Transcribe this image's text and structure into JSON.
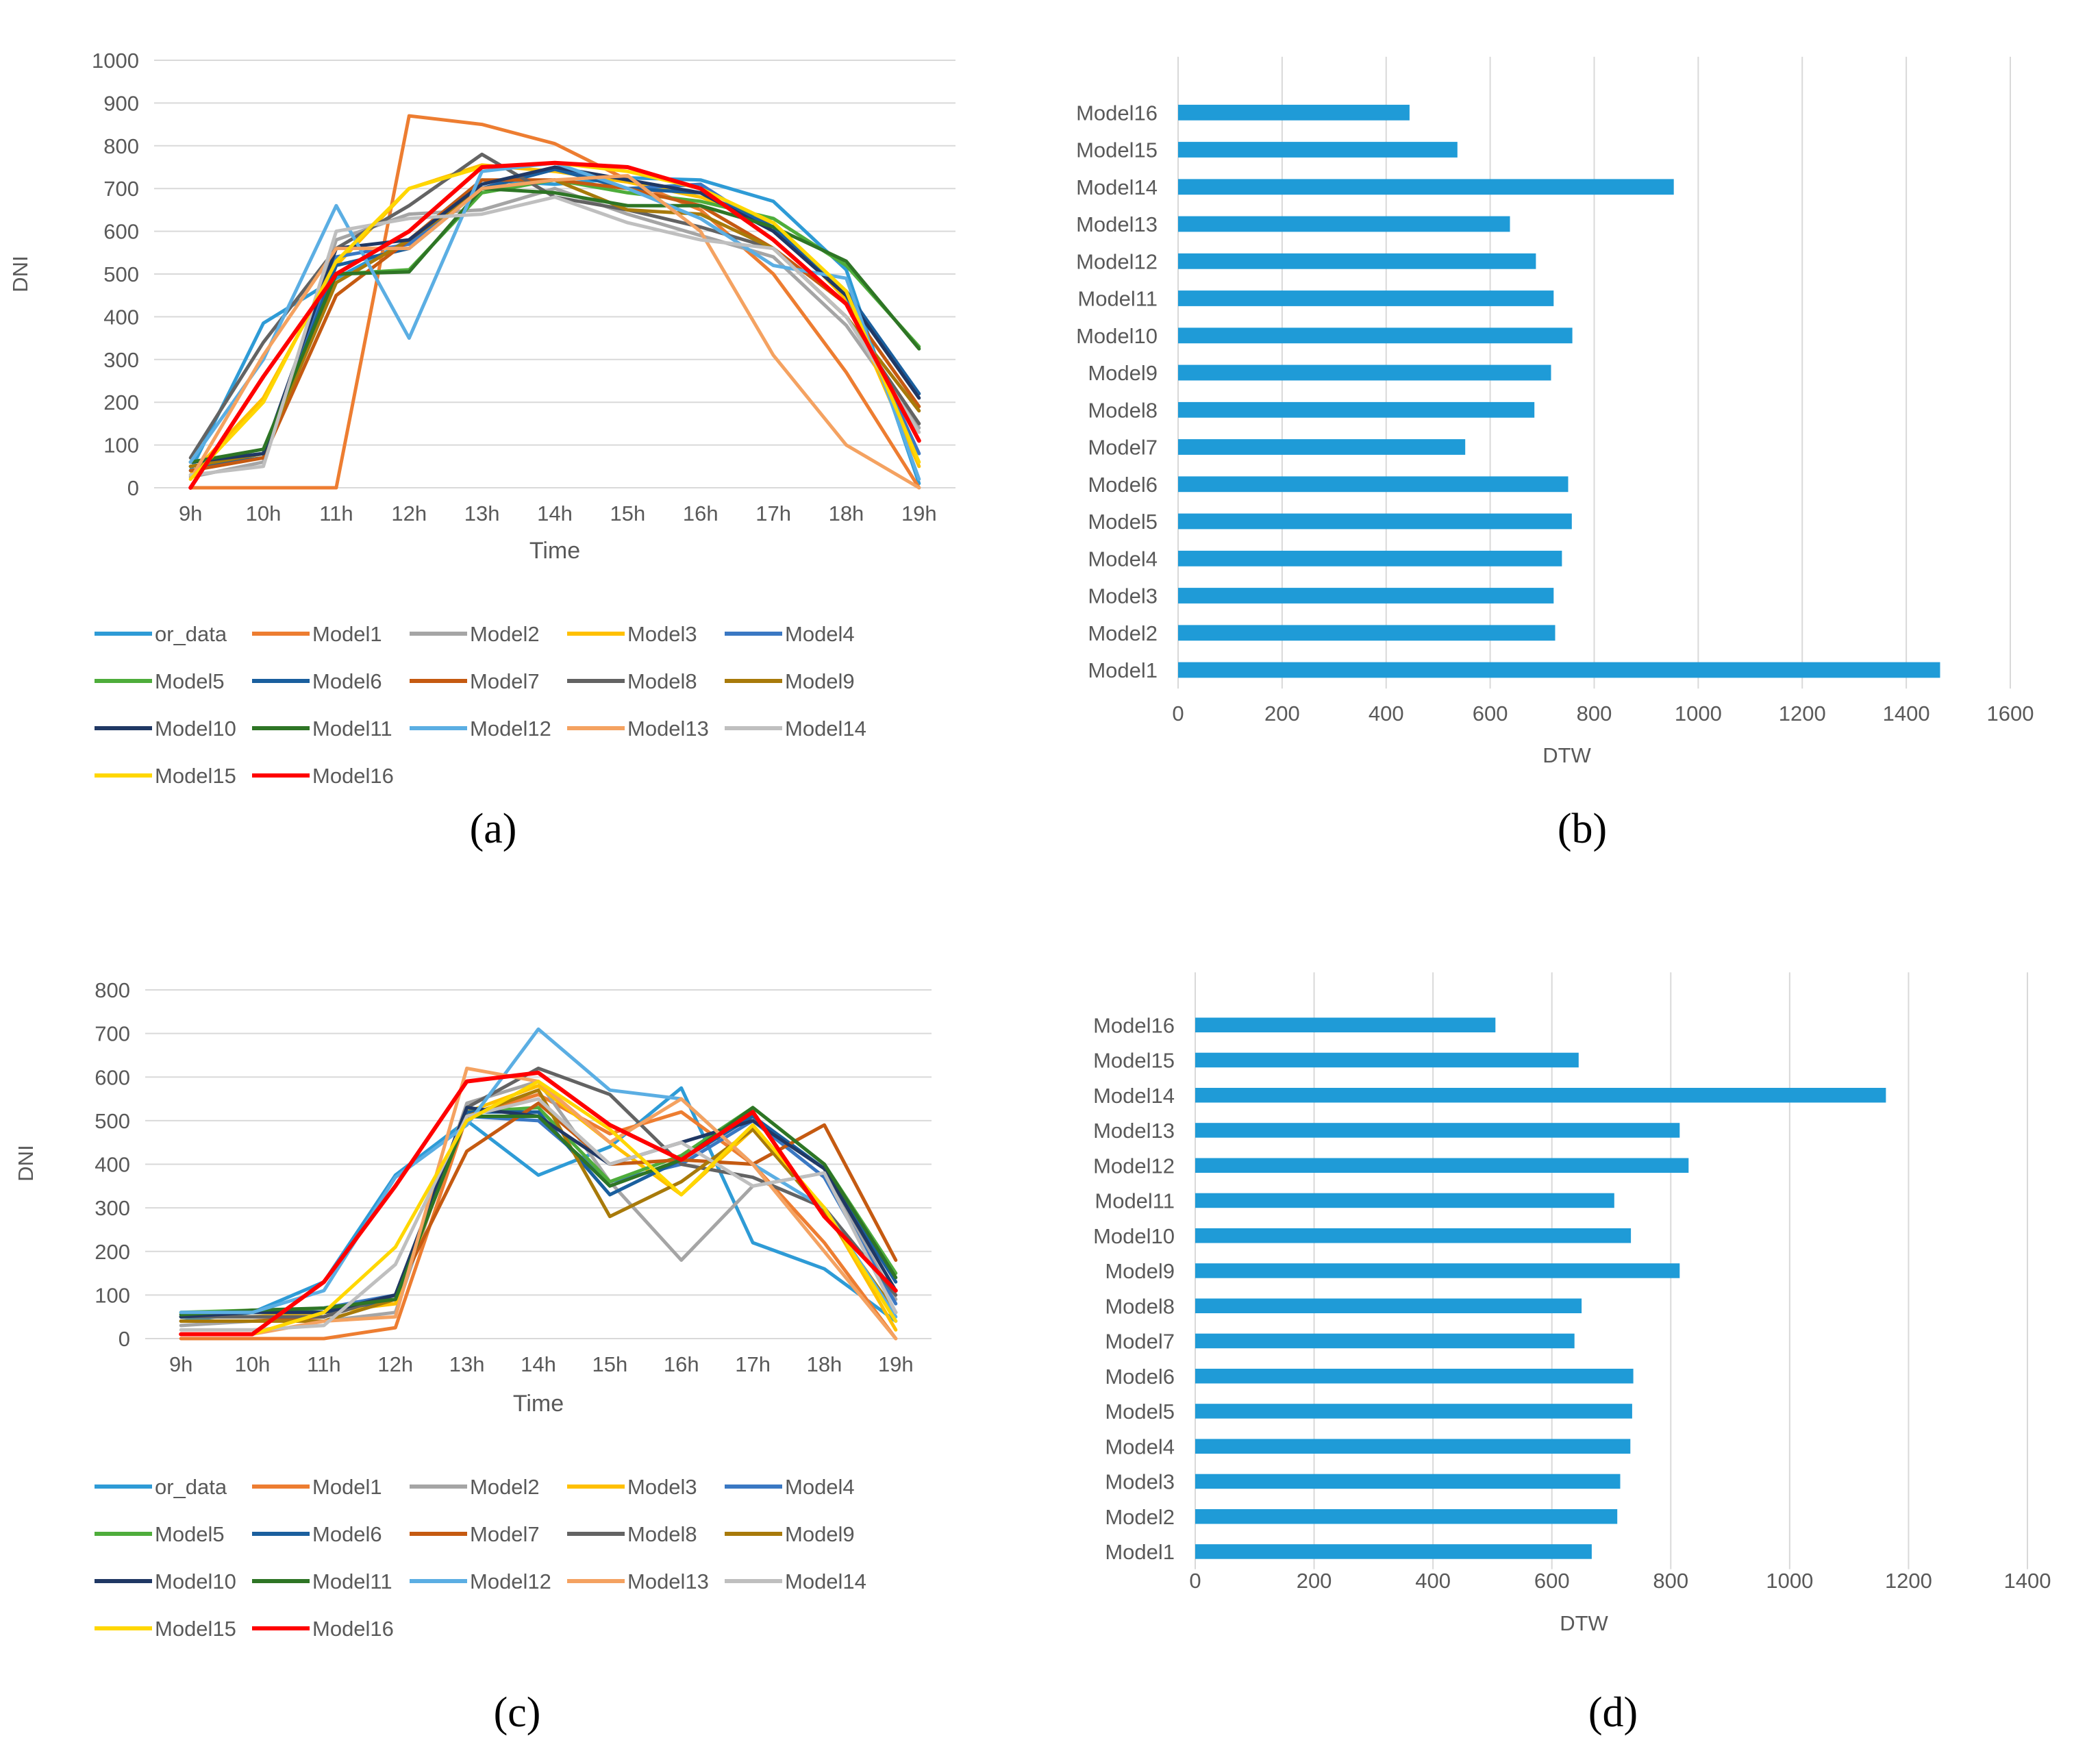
{
  "chart_data": [
    {
      "panel": "a",
      "type": "line",
      "caption": "(a)",
      "xlabel": "Time",
      "ylabel": "DNI",
      "ylim": [
        0,
        1000
      ],
      "yticks": [
        "0",
        "100",
        "200",
        "300",
        "400",
        "500",
        "600",
        "700",
        "800",
        "900",
        "1000"
      ],
      "yticks_values": [
        0,
        100,
        200,
        300,
        400,
        500,
        600,
        700,
        800,
        900,
        1000
      ],
      "categories": [
        "9h",
        "10h",
        "11h",
        "12h",
        "13h",
        "14h",
        "15h",
        "16h",
        "17h",
        "18h",
        "19h"
      ],
      "grid": true,
      "legend_position": "bottom",
      "series": [
        {
          "name": "or_data",
          "color": "#2E9BD6",
          "values": [
            40,
            385,
            490,
            580,
            720,
            710,
            725,
            720,
            670,
            510,
            10
          ]
        },
        {
          "name": "Model1",
          "color": "#ED7D31",
          "values": [
            0,
            0,
            0,
            870,
            850,
            805,
            720,
            650,
            500,
            270,
            0
          ]
        },
        {
          "name": "Model2",
          "color": "#A5A5A5",
          "values": [
            25,
            60,
            580,
            640,
            650,
            700,
            640,
            590,
            540,
            380,
            140
          ]
        },
        {
          "name": "Model3",
          "color": "#FFC000",
          "values": [
            30,
            210,
            520,
            700,
            755,
            740,
            715,
            680,
            620,
            440,
            50
          ]
        },
        {
          "name": "Model4",
          "color": "#3A78C3",
          "values": [
            60,
            80,
            540,
            570,
            700,
            750,
            700,
            710,
            600,
            450,
            80
          ]
        },
        {
          "name": "Model5",
          "color": "#4EAD3B",
          "values": [
            50,
            80,
            500,
            510,
            690,
            720,
            690,
            670,
            630,
            520,
            330
          ]
        },
        {
          "name": "Model6",
          "color": "#1A5F9E",
          "values": [
            50,
            70,
            520,
            560,
            700,
            745,
            700,
            690,
            610,
            460,
            220
          ]
        },
        {
          "name": "Model7",
          "color": "#C55A11",
          "values": [
            40,
            70,
            450,
            580,
            720,
            720,
            700,
            660,
            560,
            430,
            190
          ]
        },
        {
          "name": "Model8",
          "color": "#636363",
          "values": [
            70,
            340,
            560,
            660,
            780,
            680,
            650,
            610,
            560,
            400,
            150
          ]
        },
        {
          "name": "Model9",
          "color": "#A87A0A",
          "values": [
            50,
            80,
            480,
            580,
            700,
            720,
            650,
            640,
            560,
            400,
            180
          ]
        },
        {
          "name": "Model10",
          "color": "#203864",
          "values": [
            60,
            80,
            560,
            580,
            710,
            750,
            720,
            690,
            600,
            450,
            210
          ]
        },
        {
          "name": "Model11",
          "color": "#2E7525",
          "values": [
            60,
            90,
            500,
            505,
            700,
            690,
            660,
            660,
            610,
            530,
            325
          ]
        },
        {
          "name": "Model12",
          "color": "#5BAEE3",
          "values": [
            60,
            300,
            660,
            350,
            740,
            760,
            700,
            630,
            520,
            490,
            20
          ]
        },
        {
          "name": "Model13",
          "color": "#F4A261",
          "values": [
            20,
            310,
            560,
            560,
            700,
            720,
            730,
            600,
            310,
            100,
            0
          ]
        },
        {
          "name": "Model14",
          "color": "#BFBFBF",
          "values": [
            30,
            50,
            600,
            630,
            640,
            680,
            620,
            580,
            560,
            400,
            130
          ]
        },
        {
          "name": "Model15",
          "color": "#FFD700",
          "values": [
            20,
            200,
            530,
            700,
            750,
            760,
            740,
            700,
            620,
            460,
            60
          ]
        },
        {
          "name": "Model16",
          "color": "#FF0000",
          "values": [
            0,
            260,
            500,
            600,
            750,
            760,
            750,
            700,
            580,
            430,
            110
          ]
        }
      ]
    },
    {
      "panel": "b",
      "type": "bar",
      "orientation": "horizontal",
      "caption": "(b)",
      "xlabel": "DTW",
      "ylabel": "",
      "xlim": [
        0,
        1600
      ],
      "xticks": [
        "0",
        "200",
        "400",
        "600",
        "800",
        "1000",
        "1200",
        "1400",
        "1600"
      ],
      "xticks_values": [
        0,
        200,
        400,
        600,
        800,
        1000,
        1200,
        1400,
        1600
      ],
      "grid": true,
      "bar_color": "#1F9BD7",
      "categories": [
        "Model1",
        "Model2",
        "Model3",
        "Model4",
        "Model5",
        "Model6",
        "Model7",
        "Model8",
        "Model9",
        "Model10",
        "Model11",
        "Model12",
        "Model13",
        "Model14",
        "Model15",
        "Model16"
      ],
      "values": [
        1465,
        725,
        722,
        738,
        757,
        750,
        552,
        685,
        717,
        758,
        722,
        688,
        638,
        953,
        537,
        445
      ]
    },
    {
      "panel": "c",
      "type": "line",
      "caption": "(c)",
      "xlabel": "Time",
      "ylabel": "DNI",
      "ylim": [
        0,
        800
      ],
      "yticks": [
        "0",
        "100",
        "200",
        "300",
        "400",
        "500",
        "600",
        "700",
        "800"
      ],
      "yticks_values": [
        0,
        100,
        200,
        300,
        400,
        500,
        600,
        700,
        800
      ],
      "categories": [
        "9h",
        "10h",
        "11h",
        "12h",
        "13h",
        "14h",
        "15h",
        "16h",
        "17h",
        "18h",
        "19h"
      ],
      "grid": true,
      "legend_position": "bottom",
      "series": [
        {
          "name": "or_data",
          "color": "#2E9BD6",
          "values": [
            40,
            60,
            130,
            375,
            500,
            375,
            440,
            575,
            220,
            160,
            40
          ]
        },
        {
          "name": "Model1",
          "color": "#ED7D31",
          "values": [
            0,
            0,
            0,
            25,
            510,
            560,
            470,
            520,
            400,
            220,
            0
          ]
        },
        {
          "name": "Model2",
          "color": "#A5A5A5",
          "values": [
            30,
            40,
            40,
            60,
            540,
            590,
            360,
            180,
            350,
            380,
            90
          ]
        },
        {
          "name": "Model3",
          "color": "#FFC000",
          "values": [
            50,
            50,
            60,
            80,
            520,
            580,
            450,
            330,
            480,
            300,
            20
          ]
        },
        {
          "name": "Model4",
          "color": "#3A78C3",
          "values": [
            50,
            60,
            70,
            100,
            510,
            500,
            360,
            400,
            500,
            370,
            80
          ]
        },
        {
          "name": "Model5",
          "color": "#4EAD3B",
          "values": [
            60,
            65,
            60,
            90,
            520,
            530,
            360,
            420,
            530,
            400,
            150
          ]
        },
        {
          "name": "Model6",
          "color": "#1A5F9E",
          "values": [
            50,
            60,
            60,
            90,
            520,
            520,
            330,
            410,
            510,
            390,
            130
          ]
        },
        {
          "name": "Model7",
          "color": "#C55A11",
          "values": [
            40,
            40,
            50,
            100,
            430,
            540,
            400,
            410,
            400,
            490,
            180
          ]
        },
        {
          "name": "Model8",
          "color": "#636363",
          "values": [
            50,
            50,
            50,
            100,
            530,
            620,
            560,
            400,
            370,
            300,
            100
          ]
        },
        {
          "name": "Model9",
          "color": "#A87A0A",
          "values": [
            40,
            40,
            40,
            90,
            510,
            570,
            280,
            360,
            480,
            290,
            60
          ]
        },
        {
          "name": "Model10",
          "color": "#203864",
          "values": [
            50,
            60,
            60,
            100,
            530,
            510,
            400,
            450,
            500,
            390,
            110
          ]
        },
        {
          "name": "Model11",
          "color": "#2E7525",
          "values": [
            55,
            65,
            70,
            90,
            510,
            510,
            350,
            410,
            530,
            400,
            140
          ]
        },
        {
          "name": "Model12",
          "color": "#5BAEE3",
          "values": [
            60,
            60,
            110,
            370,
            490,
            710,
            570,
            550,
            400,
            300,
            50
          ]
        },
        {
          "name": "Model13",
          "color": "#F4A261",
          "values": [
            10,
            10,
            40,
            50,
            620,
            590,
            450,
            550,
            400,
            200,
            0
          ]
        },
        {
          "name": "Model14",
          "color": "#BFBFBF",
          "values": [
            20,
            20,
            30,
            170,
            510,
            550,
            400,
            450,
            350,
            380,
            60
          ]
        },
        {
          "name": "Model15",
          "color": "#FFD700",
          "values": [
            10,
            10,
            60,
            210,
            500,
            590,
            480,
            330,
            490,
            300,
            40
          ]
        },
        {
          "name": "Model16",
          "color": "#FF0000",
          "values": [
            10,
            10,
            130,
            350,
            590,
            610,
            490,
            410,
            520,
            280,
            110
          ]
        }
      ]
    },
    {
      "panel": "d",
      "type": "bar",
      "orientation": "horizontal",
      "caption": "(d)",
      "xlabel": "DTW",
      "ylabel": "",
      "xlim": [
        0,
        1400
      ],
      "xticks": [
        "0",
        "200",
        "400",
        "600",
        "800",
        "1000",
        "1200",
        "1400"
      ],
      "xticks_values": [
        0,
        200,
        400,
        600,
        800,
        1000,
        1200,
        1400
      ],
      "grid": true,
      "bar_color": "#1F9BD7",
      "categories": [
        "Model1",
        "Model2",
        "Model3",
        "Model4",
        "Model5",
        "Model6",
        "Model7",
        "Model8",
        "Model9",
        "Model10",
        "Model11",
        "Model12",
        "Model13",
        "Model14",
        "Model15",
        "Model16"
      ],
      "values": [
        667,
        710,
        715,
        732,
        735,
        737,
        638,
        650,
        815,
        733,
        705,
        830,
        815,
        1162,
        645,
        505
      ]
    }
  ]
}
